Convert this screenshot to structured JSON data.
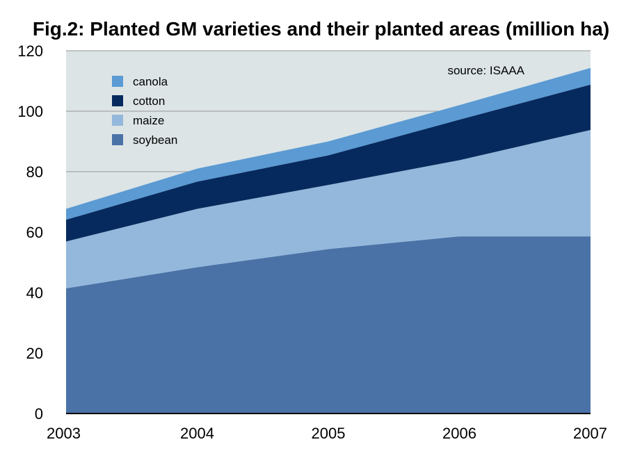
{
  "chart_data": {
    "type": "area",
    "stacked": true,
    "title": "Fig.2: Planted GM varieties and their planted areas (million ha)",
    "annotation": "source: ISAAA",
    "x": [
      "2003",
      "2004",
      "2005",
      "2006",
      "2007"
    ],
    "ylim": [
      0,
      120
    ],
    "yticks": [
      0,
      20,
      40,
      60,
      80,
      100,
      120
    ],
    "grid": true,
    "legend_position": "top-left",
    "series": [
      {
        "name": "soybean",
        "values": [
          41.4,
          48.4,
          54.4,
          58.6,
          58.6
        ],
        "color": "#4a72a7"
      },
      {
        "name": "maize",
        "values": [
          15.5,
          19.3,
          21.2,
          25.2,
          35.2
        ],
        "color": "#94b8db"
      },
      {
        "name": "cotton",
        "values": [
          7.2,
          9.0,
          9.8,
          13.4,
          15.0
        ],
        "color": "#072a5e"
      },
      {
        "name": "canola",
        "values": [
          3.6,
          4.3,
          4.6,
          4.8,
          5.5
        ],
        "color": "#5b9ad3"
      }
    ],
    "legend_order": [
      "canola",
      "cotton",
      "maize",
      "soybean"
    ],
    "plot_background": "#dce4e6",
    "grid_color": "#a6a6a6"
  }
}
